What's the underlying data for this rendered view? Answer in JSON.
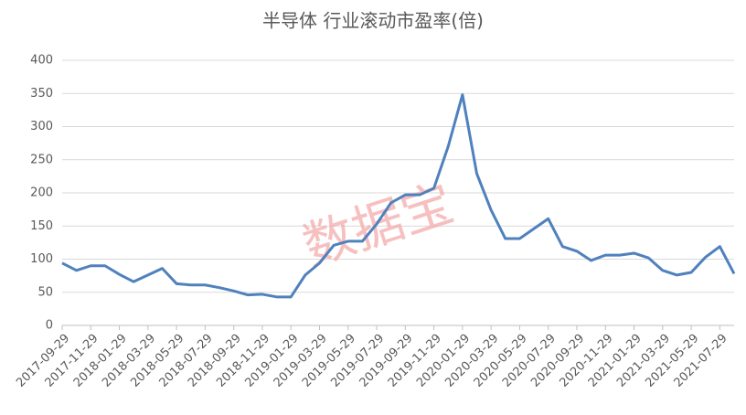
{
  "chart_data": {
    "type": "line",
    "title": "半导体 行业滚动市盈率(倍)",
    "watermark": "数据宝",
    "categories": [
      "2017-09-29",
      null,
      "2017-11-29",
      null,
      "2018-01-29",
      null,
      "2018-03-29",
      null,
      "2018-05-29",
      null,
      "2018-07-29",
      null,
      "2018-09-29",
      null,
      "2018-11-29",
      null,
      "2019-01-29",
      null,
      "2019-03-29",
      null,
      "2019-05-29",
      null,
      "2019-07-29",
      null,
      "2019-09-29",
      null,
      "2019-11-29",
      null,
      "2020-01-29",
      null,
      "2020-03-29",
      null,
      "2020-05-29",
      null,
      "2020-07-29",
      null,
      "2020-09-29",
      null,
      "2020-11-29",
      null,
      "2021-01-29",
      null,
      "2021-03-29",
      null,
      "2021-05-29",
      null,
      "2021-07-29",
      null
    ],
    "series": [
      {
        "name": "市盈率",
        "color": "#4f81bd",
        "values": [
          94,
          83,
          90,
          90,
          77,
          66,
          76,
          86,
          63,
          61,
          61,
          57,
          52,
          46,
          47,
          43,
          43,
          76,
          94,
          121,
          127,
          127,
          153,
          185,
          197,
          197,
          207,
          270,
          348,
          229,
          174,
          131,
          131,
          146,
          161,
          119,
          112,
          98,
          106,
          106,
          109,
          102,
          83,
          76,
          80,
          103,
          119,
          78
        ]
      }
    ],
    "ylim": [
      0,
      400
    ],
    "yticks": [
      0,
      50,
      100,
      150,
      200,
      250,
      300,
      350,
      400
    ],
    "grid": true
  }
}
